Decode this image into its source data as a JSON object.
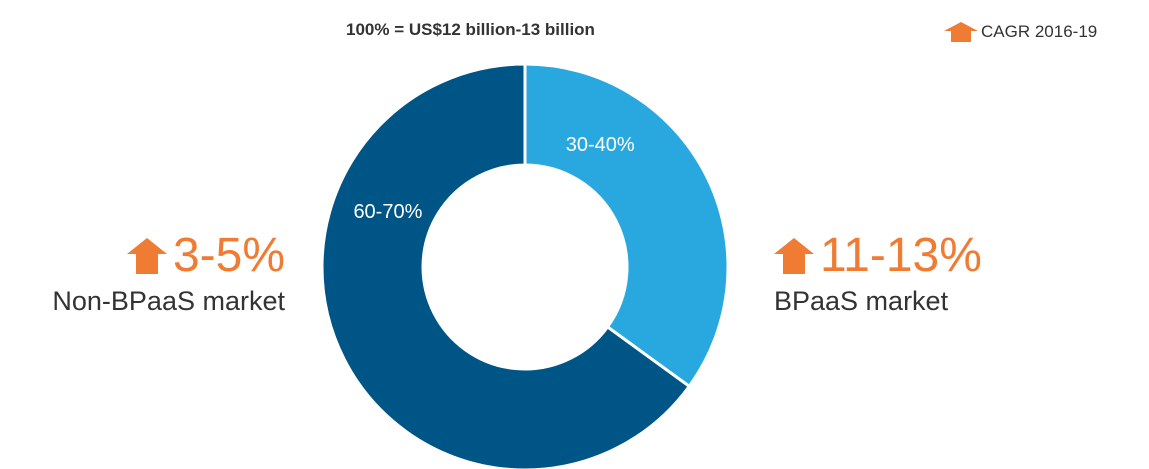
{
  "chart_data": {
    "type": "pie",
    "title": "100% = US$12 billion-13 billion",
    "legend": {
      "label": "CAGR 2016-19",
      "icon": "up-arrow-icon",
      "placement": "top-right"
    },
    "slices": [
      {
        "name": "BPaaS market",
        "label": "30-40%",
        "value": 35,
        "color": "#29a8e0",
        "growth": "11-13%"
      },
      {
        "name": "Non-BPaaS market",
        "label": "60-70%",
        "value": 65,
        "color": "#005587",
        "growth": "3-5%"
      }
    ],
    "hole": "donut"
  },
  "colors": {
    "accent": "#f07c33",
    "separator": "#ffffff"
  }
}
